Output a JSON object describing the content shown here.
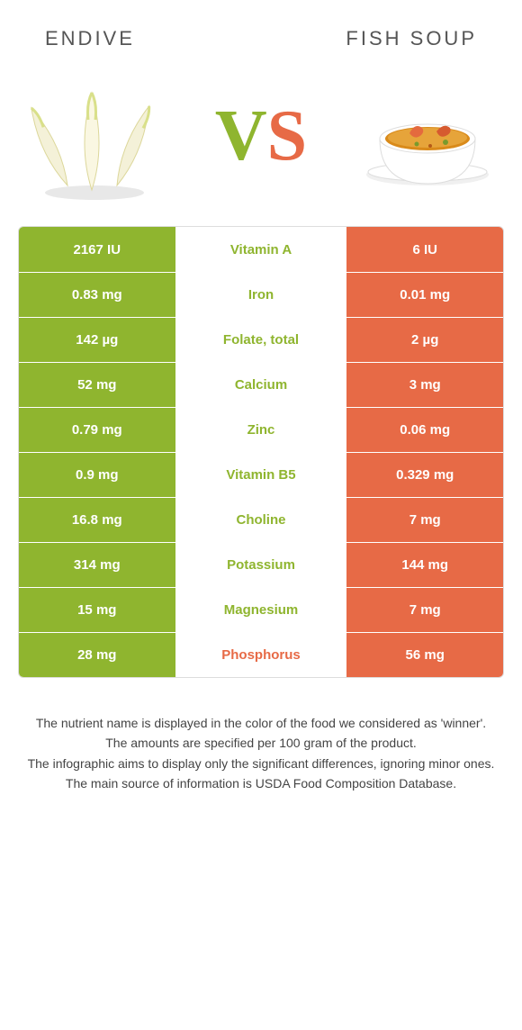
{
  "header": {
    "left_title": "Endive",
    "right_title": "Fish soup"
  },
  "vs": {
    "v": "V",
    "s": "S"
  },
  "colors": {
    "left": "#8fb52f",
    "right": "#e76a46",
    "row_left_bg": "#8fb52f",
    "row_right_bg": "#e76a46",
    "text": "#444444"
  },
  "rows": [
    {
      "left": "2167 IU",
      "name": "Vitamin A",
      "right": "6 IU",
      "winner": "left"
    },
    {
      "left": "0.83 mg",
      "name": "Iron",
      "right": "0.01 mg",
      "winner": "left"
    },
    {
      "left": "142 µg",
      "name": "Folate, total",
      "right": "2 µg",
      "winner": "left"
    },
    {
      "left": "52 mg",
      "name": "Calcium",
      "right": "3 mg",
      "winner": "left"
    },
    {
      "left": "0.79 mg",
      "name": "Zinc",
      "right": "0.06 mg",
      "winner": "left"
    },
    {
      "left": "0.9 mg",
      "name": "Vitamin B5",
      "right": "0.329 mg",
      "winner": "left"
    },
    {
      "left": "16.8 mg",
      "name": "Choline",
      "right": "7 mg",
      "winner": "left"
    },
    {
      "left": "314 mg",
      "name": "Potassium",
      "right": "144 mg",
      "winner": "left"
    },
    {
      "left": "15 mg",
      "name": "Magnesium",
      "right": "7 mg",
      "winner": "left"
    },
    {
      "left": "28 mg",
      "name": "Phosphorus",
      "right": "56 mg",
      "winner": "right"
    }
  ],
  "notes": {
    "l1": "The nutrient name is displayed in the color of the food we considered as 'winner'.",
    "l2": "The amounts are specified per 100 gram of the product.",
    "l3": "The infographic aims to display only the significant differences, ignoring minor ones.",
    "l4": "The main source of information is USDA Food Composition Database."
  }
}
